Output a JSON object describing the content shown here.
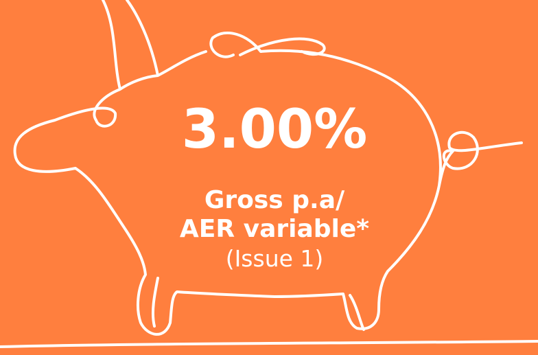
{
  "promo": {
    "rate": "3.00%",
    "line1": "Gross p.a/",
    "line2": "AER variable*",
    "issue": "(Issue 1)"
  }
}
